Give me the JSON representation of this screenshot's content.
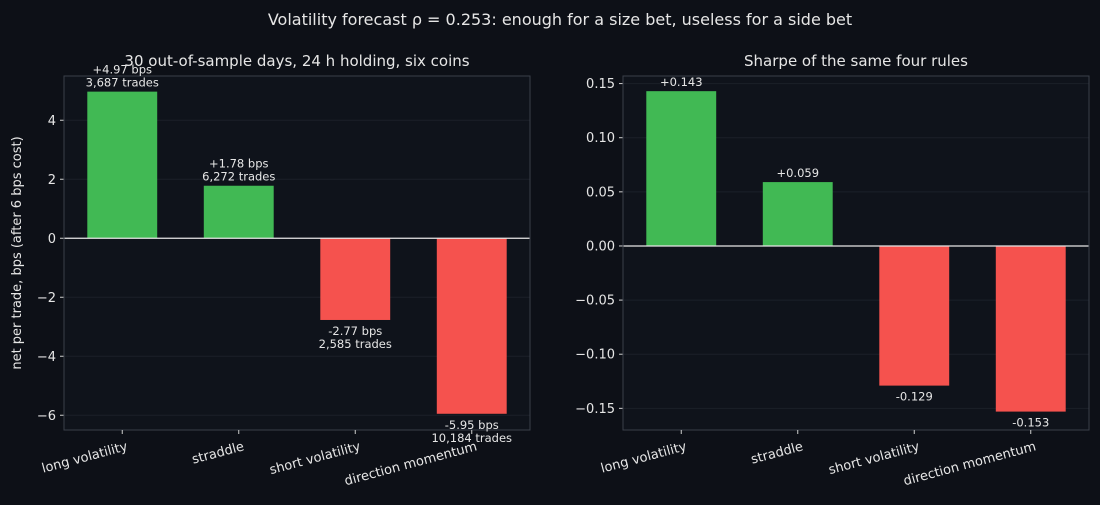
{
  "suptitle": "Volatility forecast ρ = 0.253: enough for a size bet, useless for a side bet",
  "colors": {
    "background": "#0d1017",
    "panel": "#0f131b",
    "positive": "#41b954",
    "negative": "#f5524e",
    "text": "#e6e6e6",
    "axis": "#3a3f4a"
  },
  "chart_data": [
    {
      "type": "bar",
      "title": "30 out-of-sample days, 24 h holding, six coins",
      "ylabel": "net per trade, bps (after 6 bps cost)",
      "xlabel": "",
      "categories": [
        "long volatility",
        "straddle",
        "short volatility",
        "direction momentum"
      ],
      "values": [
        4.97,
        1.78,
        -2.77,
        -5.95
      ],
      "annotations": [
        [
          "+4.97 bps",
          "3,687 trades"
        ],
        [
          "+1.78 bps",
          "6,272 trades"
        ],
        [
          "-2.77 bps",
          "2,585 trades"
        ],
        [
          "-5.95 bps",
          "10,184 trades"
        ]
      ],
      "yticks": [
        -6,
        -4,
        -2,
        0,
        2,
        4
      ],
      "ytick_labels": [
        "−6",
        "−4",
        "−2",
        "0",
        "2",
        "4"
      ],
      "ylim": [
        -6.5,
        5.5
      ],
      "grid": true
    },
    {
      "type": "bar",
      "title": "Sharpe of the same four rules",
      "ylabel": "",
      "xlabel": "",
      "categories": [
        "long volatility",
        "straddle",
        "short volatility",
        "direction momentum"
      ],
      "values": [
        0.143,
        0.059,
        -0.129,
        -0.153
      ],
      "annotations": [
        [
          "+0.143"
        ],
        [
          "+0.059"
        ],
        [
          "-0.129"
        ],
        [
          "-0.153"
        ]
      ],
      "yticks": [
        -0.15,
        -0.1,
        -0.05,
        0,
        0.05,
        0.1,
        0.15
      ],
      "ytick_labels": [
        "−0.15",
        "−0.10",
        "−0.05",
        "0.00",
        "0.05",
        "0.10",
        "0.15"
      ],
      "ylim": [
        -0.17,
        0.157
      ],
      "grid": true
    }
  ]
}
